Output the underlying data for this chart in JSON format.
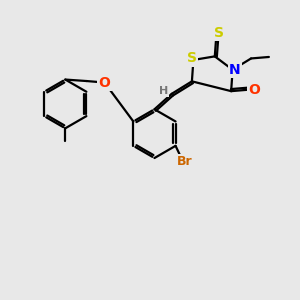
{
  "background_color": "#e8e8e8",
  "bond_color": "#000000",
  "atom_colors": {
    "S": "#cccc00",
    "N": "#0000ff",
    "O": "#ff3300",
    "Br": "#cc6600",
    "H": "#777777",
    "C": "#000000"
  },
  "bond_width": 1.6,
  "dbo": 0.07,
  "figsize": [
    3.0,
    3.0
  ],
  "dpi": 100
}
